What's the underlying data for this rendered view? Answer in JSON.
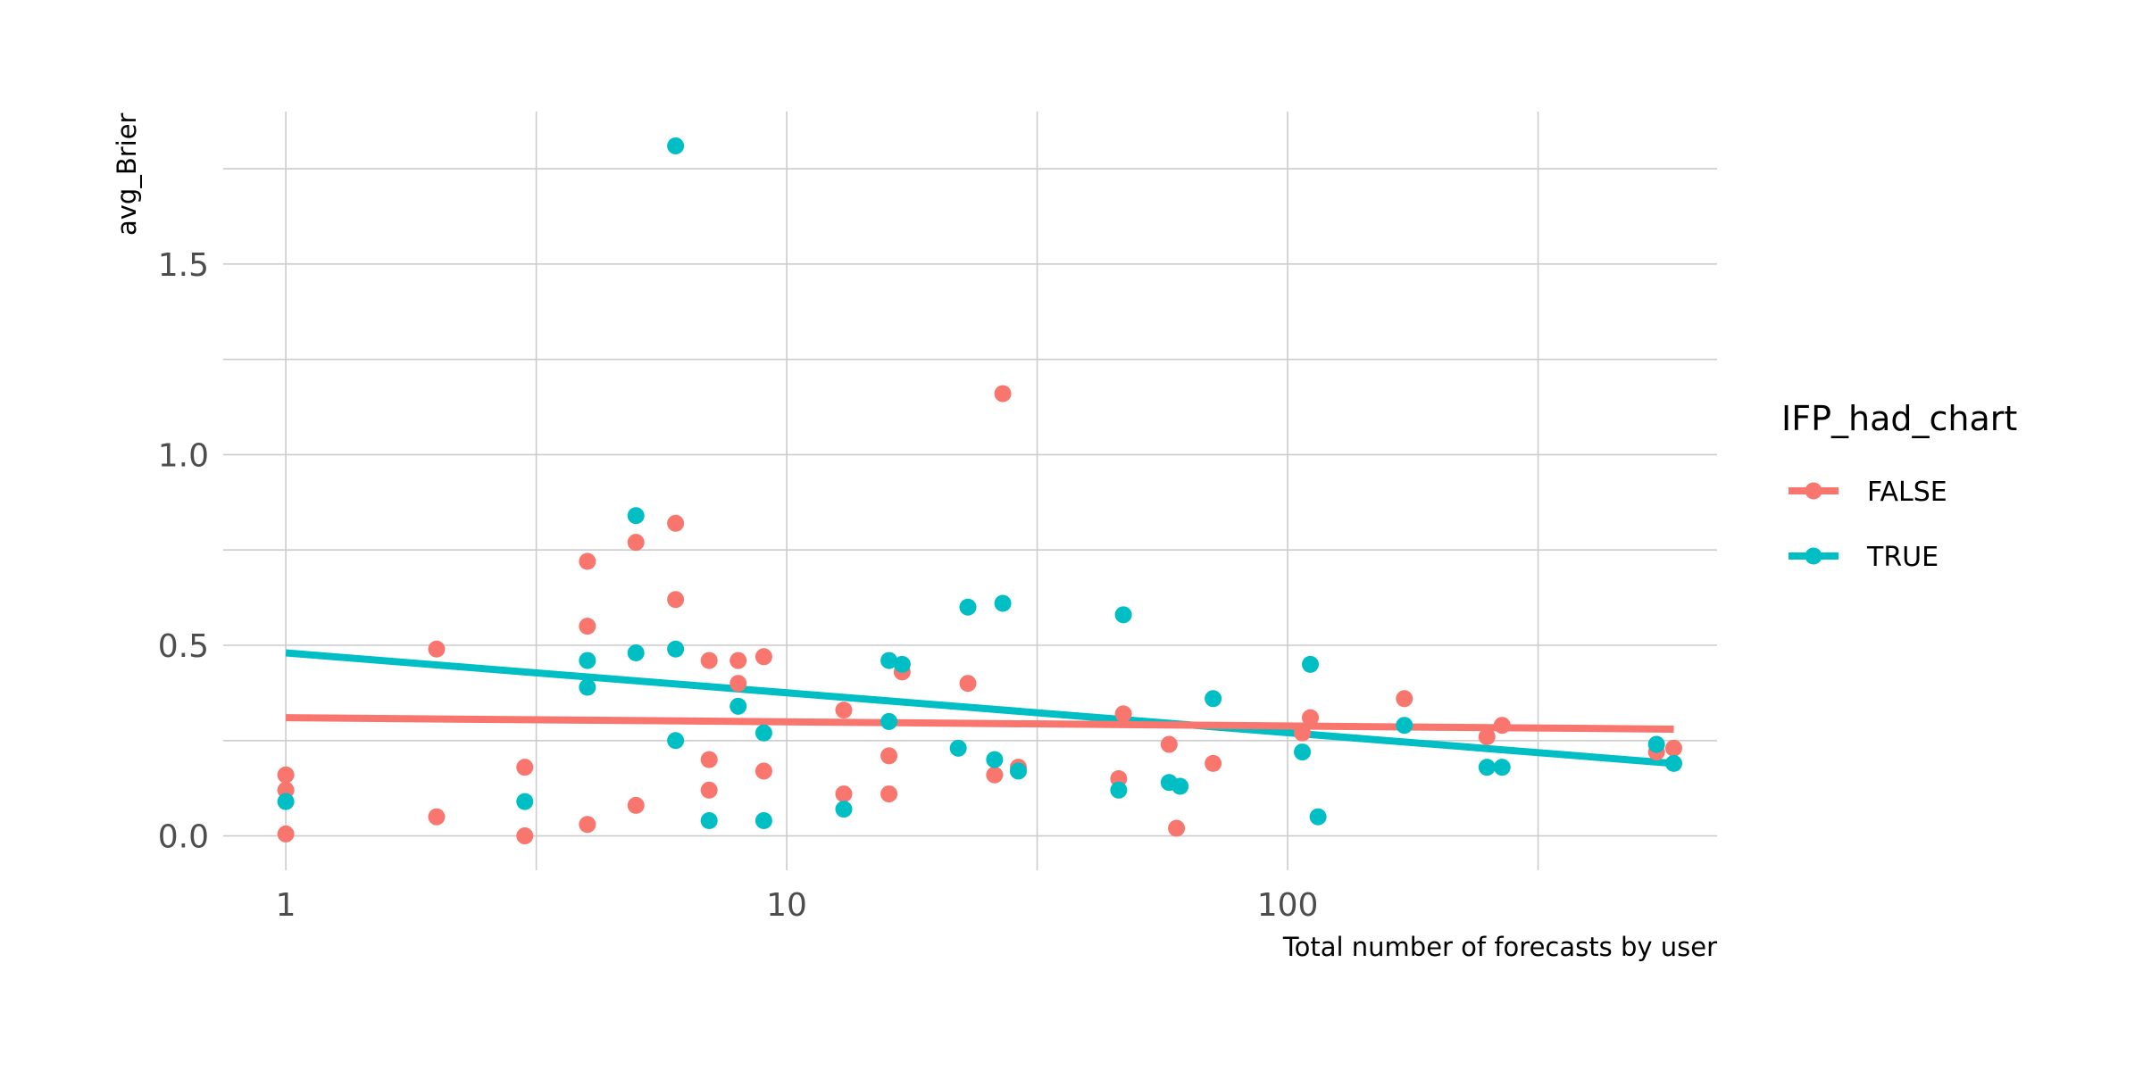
{
  "chart_data": {
    "type": "scatter",
    "title": "",
    "xlabel": "Total number of forecasts by user",
    "ylabel": "avg_Brier",
    "x_scale": "log10",
    "xlim": [
      0.75,
      720
    ],
    "ylim": [
      -0.09,
      1.9
    ],
    "x_ticks": [
      1,
      10,
      100
    ],
    "x_tick_labels": [
      "1",
      "10",
      "100"
    ],
    "y_ticks": [
      0.0,
      0.5,
      1.0,
      1.5
    ],
    "y_tick_labels": [
      "0.0",
      "0.5",
      "1.0",
      "1.5"
    ],
    "grid": true,
    "legend": {
      "title": "IFP_had_chart",
      "position": "right"
    },
    "series": [
      {
        "name": "FALSE",
        "color": "#F8766D",
        "points": [
          [
            1,
            0.16
          ],
          [
            1,
            0.12
          ],
          [
            1,
            0.005
          ],
          [
            2,
            0.49
          ],
          [
            2,
            0.05
          ],
          [
            3,
            0.18
          ],
          [
            3,
            0.0
          ],
          [
            4,
            0.72
          ],
          [
            4,
            0.55
          ],
          [
            4,
            0.03
          ],
          [
            5,
            0.77
          ],
          [
            5,
            0.08
          ],
          [
            6,
            0.82
          ],
          [
            6,
            0.62
          ],
          [
            7,
            0.46
          ],
          [
            7,
            0.2
          ],
          [
            7,
            0.12
          ],
          [
            8,
            0.46
          ],
          [
            8,
            0.4
          ],
          [
            9,
            0.47
          ],
          [
            9,
            0.17
          ],
          [
            13,
            0.33
          ],
          [
            13,
            0.11
          ],
          [
            16,
            0.21
          ],
          [
            16,
            0.11
          ],
          [
            17,
            0.43
          ],
          [
            23,
            0.4
          ],
          [
            26,
            0.16
          ],
          [
            27,
            1.16
          ],
          [
            29,
            0.18
          ],
          [
            46,
            0.15
          ],
          [
            47,
            0.32
          ],
          [
            58,
            0.24
          ],
          [
            60,
            0.02
          ],
          [
            71,
            0.19
          ],
          [
            107,
            0.27
          ],
          [
            111,
            0.31
          ],
          [
            171,
            0.36
          ],
          [
            250,
            0.26
          ],
          [
            268,
            0.29
          ],
          [
            545,
            0.22
          ],
          [
            590,
            0.23
          ]
        ],
        "trend": [
          [
            1,
            0.31
          ],
          [
            590,
            0.28
          ]
        ]
      },
      {
        "name": "TRUE",
        "color": "#00BFC4",
        "points": [
          [
            1,
            0.09
          ],
          [
            3,
            0.09
          ],
          [
            4,
            0.46
          ],
          [
            4,
            0.39
          ],
          [
            5,
            0.84
          ],
          [
            5,
            0.48
          ],
          [
            6,
            1.81
          ],
          [
            6,
            0.49
          ],
          [
            6,
            0.25
          ],
          [
            7,
            0.04
          ],
          [
            8,
            0.34
          ],
          [
            9,
            0.27
          ],
          [
            9,
            0.04
          ],
          [
            13,
            0.07
          ],
          [
            16,
            0.46
          ],
          [
            16,
            0.3
          ],
          [
            17,
            0.45
          ],
          [
            22,
            0.23
          ],
          [
            23,
            0.6
          ],
          [
            26,
            0.2
          ],
          [
            27,
            0.61
          ],
          [
            29,
            0.17
          ],
          [
            46,
            0.12
          ],
          [
            47,
            0.58
          ],
          [
            58,
            0.14
          ],
          [
            61,
            0.13
          ],
          [
            71,
            0.36
          ],
          [
            107,
            0.22
          ],
          [
            111,
            0.45
          ],
          [
            115,
            0.05
          ],
          [
            171,
            0.29
          ],
          [
            250,
            0.18
          ],
          [
            268,
            0.18
          ],
          [
            545,
            0.24
          ],
          [
            590,
            0.19
          ]
        ],
        "trend": [
          [
            1,
            0.48
          ],
          [
            590,
            0.19
          ]
        ]
      }
    ]
  }
}
